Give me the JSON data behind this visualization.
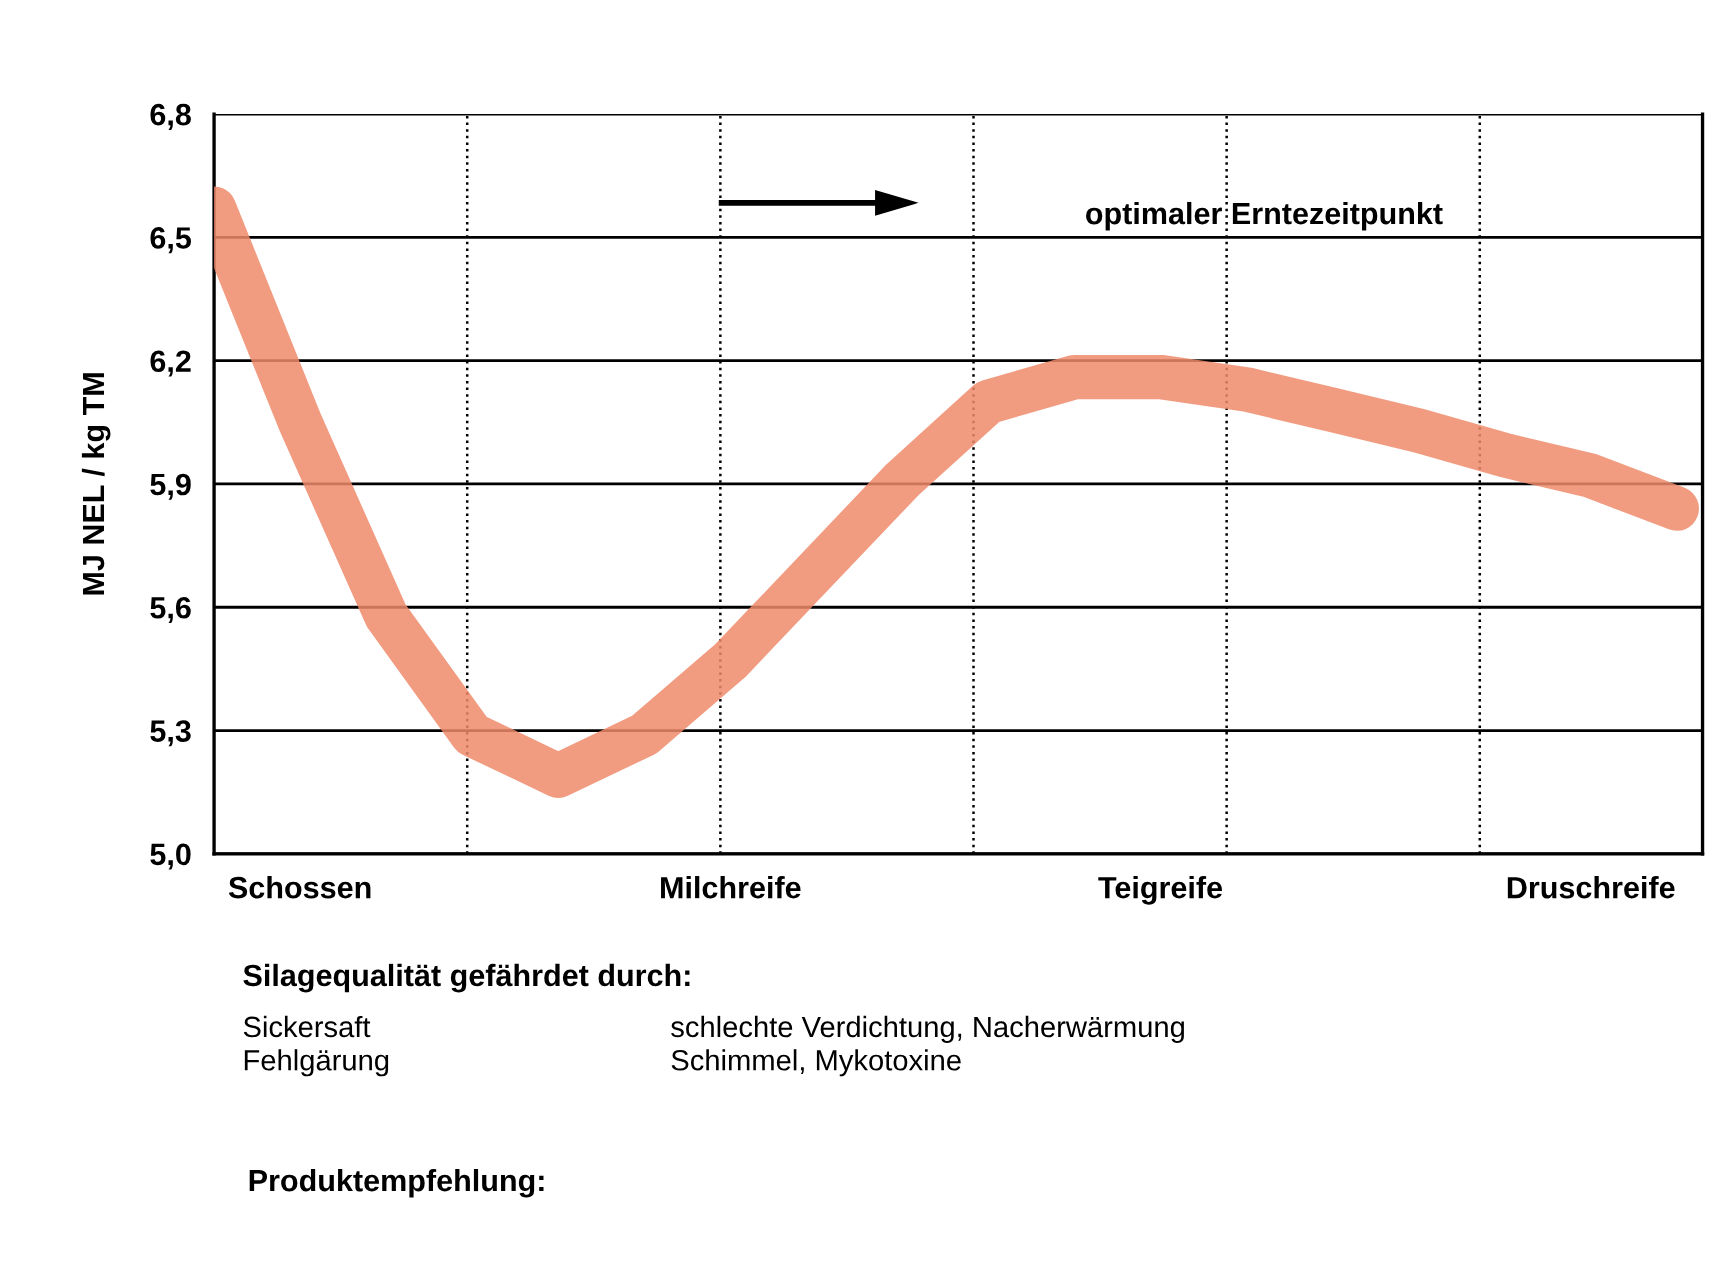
{
  "chart_data": {
    "type": "line",
    "ylabel": "MJ NEL / kg TM",
    "categories": [
      null,
      "Schossen",
      null,
      null,
      null,
      null,
      "Milchreife",
      null,
      null,
      null,
      null,
      "Teigreife",
      null,
      null,
      null,
      null,
      "Druschreife",
      null
    ],
    "series": [
      {
        "color": "#ee8a6a",
        "values": [
          6.57,
          6.05,
          5.58,
          5.29,
          5.19,
          5.29,
          5.47,
          5.69,
          5.91,
          6.1,
          6.16,
          6.16,
          6.13,
          6.08,
          6.03,
          5.97,
          5.92,
          5.84
        ]
      }
    ],
    "ylim": [
      5.0,
      6.8
    ],
    "yticks": [
      {
        "value": 5.0,
        "label": "5,0"
      },
      {
        "value": 5.3,
        "label": "5,3"
      },
      {
        "value": 5.6,
        "label": "5,6"
      },
      {
        "value": 5.9,
        "label": "5,9"
      },
      {
        "value": 6.2,
        "label": "6,2"
      },
      {
        "value": 6.5,
        "label": "6,5"
      },
      {
        "value": 6.8,
        "label": "6,8"
      }
    ],
    "grid": true,
    "marker": "none",
    "line_style": "solid",
    "annotations": [
      "optimaler Erntezeitpunkt",
      "Silagequalität gefährdet durch:",
      "Sickersaft",
      "Fehlgärung",
      "schlechte Verdichtung, Nacherwärmung",
      "Schimmel, Mykotoxine",
      "Produktempfehlung:"
    ]
  }
}
